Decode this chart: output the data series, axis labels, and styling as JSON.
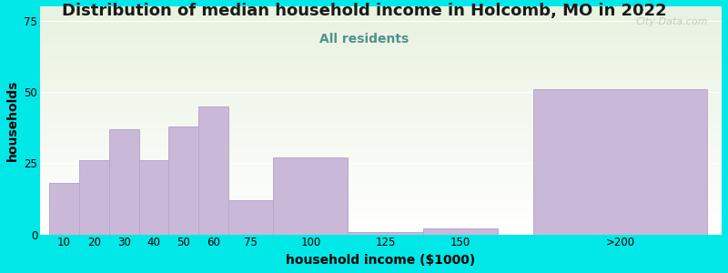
{
  "title": "Distribution of median household income in Holcomb, MO in 2022",
  "subtitle": "All residents",
  "xlabel": "household income ($1000)",
  "ylabel": "households",
  "bar_labels": [
    "10",
    "20",
    "30",
    "40",
    "50",
    "60",
    "75",
    "100",
    "125",
    "150",
    ">200"
  ],
  "bar_values": [
    18,
    26,
    37,
    26,
    38,
    45,
    12,
    27,
    1,
    2,
    51
  ],
  "bar_color": "#c9b8d8",
  "bar_edgecolor": "#b8a8cc",
  "ylim": [
    0,
    80
  ],
  "yticks": [
    0,
    25,
    50,
    75
  ],
  "background_outer": "#00e8e8",
  "background_plot_top": "#e8f2e0",
  "background_plot_bottom": "#ffffff",
  "title_fontsize": 13,
  "subtitle_fontsize": 10,
  "subtitle_color": "#509090",
  "axis_label_fontsize": 10,
  "tick_fontsize": 8.5,
  "watermark_text": "City-Data.com",
  "watermark_color": "#b8c4bc",
  "bar_lefts": [
    0,
    10,
    20,
    30,
    40,
    50,
    60,
    75,
    100,
    125,
    162
  ],
  "bar_widths": [
    10,
    10,
    10,
    10,
    10,
    10,
    15,
    25,
    25,
    25,
    58
  ],
  "xtick_positions": [
    5,
    15,
    25,
    35,
    45,
    55,
    67.5,
    87.5,
    112.5,
    137.5,
    191
  ],
  "xlim": [
    -3,
    225
  ]
}
